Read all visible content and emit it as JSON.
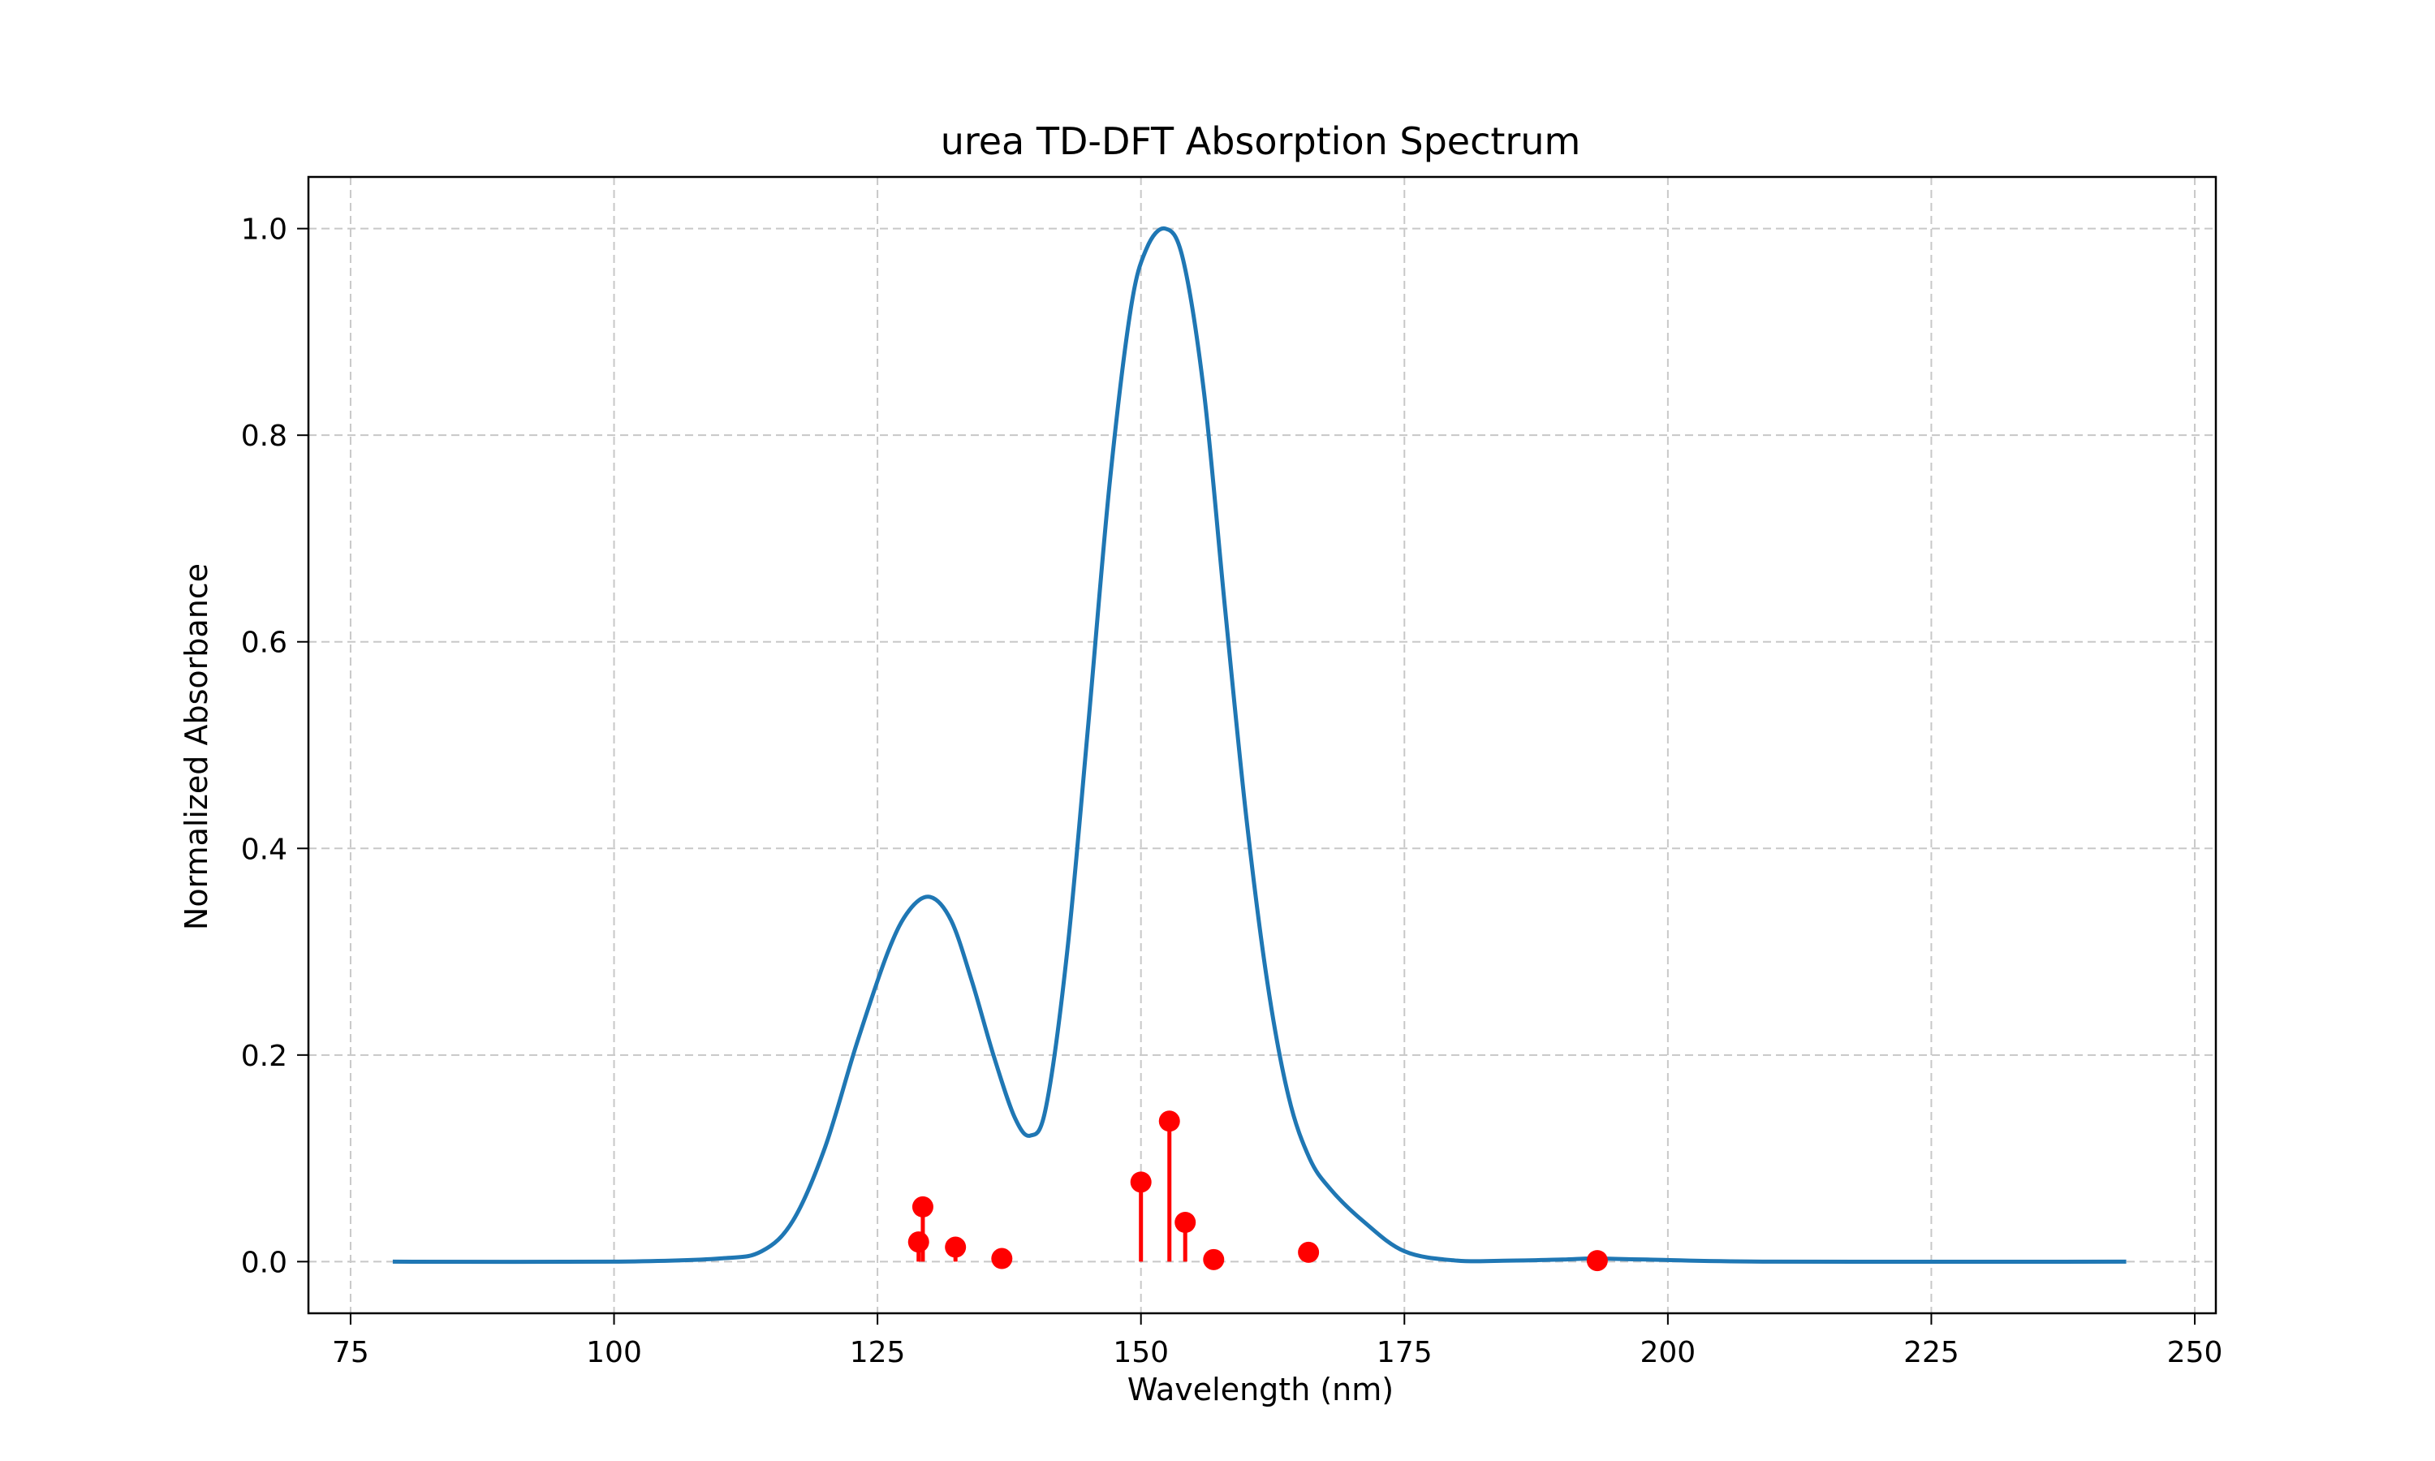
{
  "chart_data": {
    "type": "line",
    "title": "urea TD-DFT Absorption Spectrum",
    "xlabel": "Wavelength (nm)",
    "ylabel": "Normalized Absorbance",
    "xlim": [
      71,
      252
    ],
    "ylim": [
      -0.05,
      1.05
    ],
    "xticks": [
      75,
      100,
      125,
      150,
      175,
      200,
      225,
      250
    ],
    "yticks": [
      0.0,
      0.2,
      0.4,
      0.6,
      0.8,
      1.0
    ],
    "xtick_labels": [
      "75",
      "100",
      "125",
      "150",
      "175",
      "200",
      "225",
      "250"
    ],
    "ytick_labels": [
      "0.0",
      "0.2",
      "0.4",
      "0.6",
      "0.8",
      "1.0"
    ],
    "grid": true,
    "line_color": "#1f77b4",
    "stick_color": "#ff0000",
    "spectrum": {
      "x": [
        79,
        100,
        110,
        114,
        117,
        120,
        123,
        126,
        128,
        130,
        132,
        134,
        136,
        138,
        139.5,
        141,
        143,
        145,
        147,
        149,
        150.5,
        152.3,
        154,
        156,
        158,
        160,
        162,
        164,
        166,
        168,
        171,
        175,
        180,
        185,
        190,
        193,
        198,
        210,
        243.5
      ],
      "y": [
        0.0,
        0.0,
        0.003,
        0.01,
        0.04,
        0.11,
        0.21,
        0.3,
        0.34,
        0.353,
        0.33,
        0.27,
        0.2,
        0.14,
        0.122,
        0.15,
        0.3,
        0.52,
        0.75,
        0.92,
        0.98,
        1.0,
        0.97,
        0.84,
        0.63,
        0.43,
        0.27,
        0.16,
        0.1,
        0.07,
        0.04,
        0.01,
        0.001,
        0.001,
        0.002,
        0.003,
        0.002,
        0.0,
        0.0
      ]
    },
    "transitions": {
      "x": [
        128.9,
        129.3,
        132.4,
        136.8,
        150.0,
        152.7,
        154.2,
        156.9,
        165.9,
        193.3
      ],
      "y": [
        0.019,
        0.053,
        0.014,
        0.003,
        0.077,
        0.136,
        0.038,
        0.002,
        0.009,
        0.001
      ]
    }
  }
}
